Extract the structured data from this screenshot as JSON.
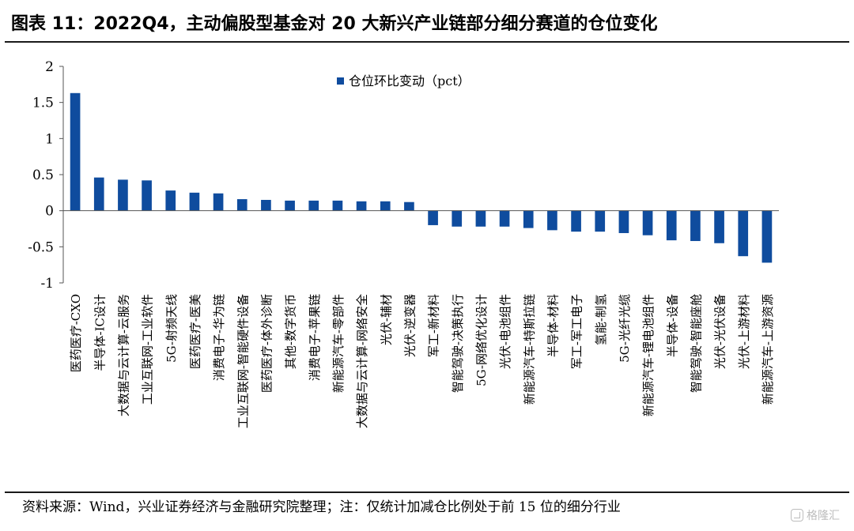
{
  "title": "图表 11：2022Q4，主动偏股型基金对 20 大新兴产业链部分细分赛道的仓位变化",
  "footnote": "资料来源：Wind，兴业证券经济与金融研究院整理；注：仅统计加减仓比例处于前 15 位的细分行业",
  "watermark": "格隆汇",
  "colors": {
    "bar": "#0f4c9e",
    "axis": "#555555",
    "text": "#000000"
  },
  "chart_data": {
    "type": "bar",
    "legend": {
      "label": "仓位环比变动（pct）",
      "placement": "top-center"
    },
    "ylim": [
      -1,
      2
    ],
    "yticks": [
      -1,
      -0.5,
      0,
      0.5,
      1,
      1.5,
      2
    ],
    "ytick_labels": [
      "-1",
      "-0.5",
      "0",
      "0.5",
      "1",
      "1.5",
      "2"
    ],
    "grid": false,
    "categories": [
      "医药医疗-CXO",
      "半导体-IC设计",
      "大数据与云计算-云服务",
      "工业互联网-工业软件",
      "5G-射频天线",
      "医药医疗-医美",
      "消费电子-华为链",
      "工业互联网-智能硬件设备",
      "医药医疗-体外诊断",
      "其他-数字货币",
      "消费电子-苹果链",
      "新能源汽车-零部件",
      "大数据与云计算-网络安全",
      "光伏-辅材",
      "光伏-逆变器",
      "军工-新材料",
      "智能驾驶-决策执行",
      "5G-网络优化设计",
      "光伏-电池组件",
      "新能源汽车-特斯拉链",
      "半导体-材料",
      "军工-军工电子",
      "氢能-制氢",
      "5G-光纤光缆",
      "新能源汽车-锂电池组件",
      "半导体-设备",
      "智能驾驶-智能座舱",
      "光伏-光伏设备",
      "光伏-上游材料",
      "新能源汽车-上游资源"
    ],
    "values": [
      1.63,
      0.46,
      0.43,
      0.42,
      0.28,
      0.25,
      0.24,
      0.16,
      0.15,
      0.14,
      0.14,
      0.14,
      0.13,
      0.13,
      0.12,
      -0.2,
      -0.22,
      -0.22,
      -0.22,
      -0.24,
      -0.27,
      -0.29,
      -0.29,
      -0.31,
      -0.34,
      -0.41,
      -0.42,
      -0.45,
      -0.63,
      -0.72
    ]
  }
}
